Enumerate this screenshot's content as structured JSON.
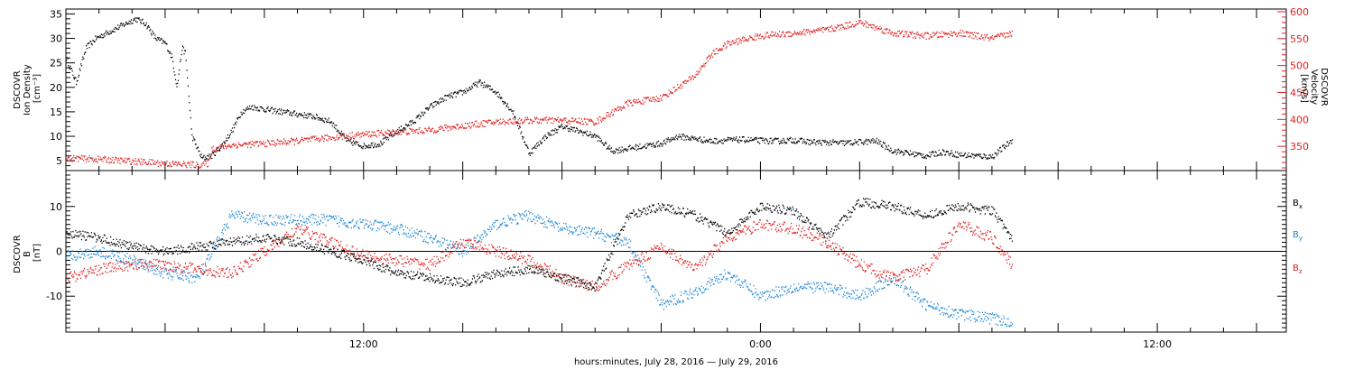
{
  "chart_data": [
    {
      "type": "scatter",
      "panel": "plasma",
      "ylabel_left": [
        "DSCOVR",
        "Ion Density",
        "[cm⁻³]"
      ],
      "ylabel_right": [
        "DSCOVR",
        "Velocity",
        "[km/s]"
      ],
      "ylim_left": [
        3,
        36
      ],
      "ylim_right": [
        305,
        605
      ],
      "yticks_left": [
        5,
        10,
        15,
        20,
        25,
        30,
        35
      ],
      "yticks_right": [
        350,
        400,
        450,
        500,
        550,
        600
      ],
      "series": [
        {
          "axis": "left",
          "color": "#000000",
          "x": [
            0,
            0.3,
            0.6,
            0.9,
            1.2,
            1.5,
            1.8,
            2.1,
            2.4,
            2.7,
            3.0,
            3.2,
            3.35,
            3.5,
            3.6,
            3.8,
            4.1,
            4.4,
            4.7,
            5.0,
            5.3,
            5.6,
            6.0,
            6.5,
            7.0,
            7.5,
            8.0,
            8.5,
            9.0,
            9.5,
            10.0,
            10.5,
            11.0,
            11.5,
            12.0,
            12.5,
            13.0,
            13.5,
            14.0,
            14.5,
            15.0,
            15.5,
            16.0,
            16.5,
            17.0,
            17.5,
            18.0,
            18.5,
            19.0,
            19.5,
            20.0,
            20.5,
            21.0,
            21.5,
            22.0,
            22.5,
            23.0,
            23.5,
            24.0,
            24.5,
            25.0,
            25.5,
            26.0,
            26.5,
            27.0,
            27.5,
            28.0,
            28.6
          ],
          "y": [
            26,
            21,
            28,
            30,
            31,
            32,
            33,
            34,
            33,
            30,
            29,
            26,
            20,
            28,
            27,
            10,
            5.5,
            6,
            8,
            11,
            15,
            16,
            15.5,
            15,
            14.5,
            14,
            13,
            9,
            8,
            8.5,
            11,
            13,
            16,
            18,
            19,
            21,
            19,
            15,
            6.5,
            10,
            12,
            11,
            10,
            7,
            7.5,
            8,
            8.5,
            10,
            9.5,
            9,
            9.2,
            9.3,
            9.1,
            9,
            9.2,
            8.8,
            8.7,
            8.6,
            8.8,
            9,
            7,
            6.5,
            6,
            6.8,
            6.2,
            6,
            5.8,
            9.2
          ]
        },
        {
          "axis": "right",
          "color": "#e02020",
          "x": [
            0,
            1,
            2,
            3,
            4,
            4.3,
            4.4,
            5,
            6,
            7,
            8,
            9,
            10,
            11,
            12,
            13,
            14,
            15,
            16,
            17,
            18,
            18.5,
            19,
            19.5,
            20,
            20.5,
            21,
            22,
            23,
            24,
            25,
            26,
            27,
            28,
            28.6
          ],
          "y": [
            328,
            326,
            322,
            318,
            315,
            318,
            345,
            352,
            355,
            360,
            366,
            372,
            376,
            380,
            388,
            395,
            398,
            398,
            395,
            430,
            440,
            460,
            480,
            520,
            540,
            548,
            555,
            560,
            566,
            580,
            560,
            555,
            560,
            550,
            560
          ]
        }
      ]
    },
    {
      "type": "scatter",
      "panel": "magnetic-field",
      "ylabel_left": [
        "DSCOVR",
        "B",
        "[nT]"
      ],
      "ylim": [
        -18,
        18
      ],
      "yticks": [
        -10,
        0,
        10
      ],
      "legend": [
        {
          "label": "B",
          "sub": "x",
          "color": "#000000"
        },
        {
          "label": "B",
          "sub": "y",
          "color": "#1a86d6"
        },
        {
          "label": "B",
          "sub": "z",
          "color": "#e02020"
        }
      ],
      "series": [
        {
          "name": "Bx",
          "color": "#000000",
          "x": [
            0,
            1,
            2,
            3,
            4,
            5,
            6,
            7,
            8,
            9,
            10,
            11,
            12,
            13,
            14,
            15,
            16,
            17,
            18,
            19,
            20,
            21,
            22,
            23,
            24,
            25,
            26,
            27,
            28,
            28.6
          ],
          "y": [
            4,
            3,
            1,
            0,
            1,
            2,
            3,
            2,
            0,
            -2,
            -5,
            -6,
            -7,
            -5,
            -4,
            -6,
            -8,
            8,
            10,
            8,
            4,
            10,
            9,
            3,
            11,
            10,
            8,
            10,
            9,
            3
          ]
        },
        {
          "name": "By",
          "color": "#1a86d6",
          "x": [
            0,
            1,
            2,
            3,
            4,
            5,
            6,
            7,
            8,
            9,
            10,
            11,
            12,
            13,
            14,
            15,
            16,
            17,
            18,
            19,
            20,
            21,
            22,
            23,
            24,
            25,
            26,
            27,
            28,
            28.6
          ],
          "y": [
            -1,
            0,
            -2,
            -5,
            -6,
            8,
            7,
            7,
            7,
            6,
            5,
            3,
            0,
            6,
            8,
            5,
            4,
            2,
            -12,
            -9,
            -5,
            -10,
            -8,
            -8,
            -10,
            -6,
            -12,
            -14,
            -15,
            -16
          ]
        },
        {
          "name": "Bz",
          "color": "#e02020",
          "x": [
            0,
            1,
            2,
            3,
            4,
            5,
            6,
            7,
            8,
            9,
            10,
            11,
            12,
            13,
            14,
            15,
            16,
            17,
            18,
            19,
            20,
            21,
            22,
            23,
            24,
            25,
            26,
            27,
            28,
            28.6
          ],
          "y": [
            -6,
            -4,
            -3,
            -3,
            -4,
            -5,
            0,
            5,
            2,
            -1,
            -2,
            -3,
            2,
            0,
            -2,
            -6,
            -8,
            -3,
            1,
            -4,
            3,
            6,
            5,
            2,
            -3,
            -6,
            -4,
            6,
            3,
            -3
          ]
        }
      ]
    }
  ],
  "x_axis": {
    "range_hours": [
      0,
      36.9
    ],
    "ticks": [
      {
        "hour": 9,
        "label": "12:00"
      },
      {
        "hour": 21,
        "label": "0:00"
      },
      {
        "hour": 33,
        "label": "12:00"
      }
    ],
    "minor_every_hours": 1,
    "major_every_hours": 3,
    "xlabel": "hours:minutes, July 28, 2016 — July 29, 2016"
  }
}
